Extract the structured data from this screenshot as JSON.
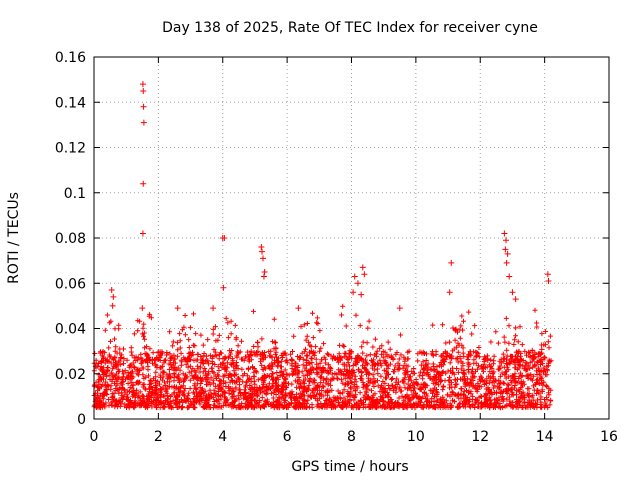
{
  "chart_data": {
    "type": "scatter",
    "title": "Day 138 of 2025, Rate Of TEC Index for receiver cyne",
    "xlabel": "GPS time / hours",
    "ylabel": "ROTI / TECUs",
    "xlim": [
      0,
      16
    ],
    "ylim": [
      0,
      0.16
    ],
    "x_ticks": [
      0,
      2,
      4,
      6,
      8,
      10,
      12,
      14,
      16
    ],
    "y_ticks": [
      0,
      0.02,
      0.04,
      0.06,
      0.08,
      0.1,
      0.12,
      0.14,
      0.16
    ],
    "x_tick_labels": [
      "0",
      "2",
      "4",
      "6",
      "8",
      "10",
      "12",
      "14",
      "16"
    ],
    "y_tick_labels": [
      "0",
      "0.02",
      "0.04",
      "0.06",
      "0.08",
      "0.1",
      "0.12",
      "0.14",
      "0.16"
    ],
    "grid": true,
    "marker": "+",
    "color": "#ff0000",
    "data_range_hours": [
      0,
      14.2
    ],
    "typical_range": [
      0.005,
      0.03
    ],
    "points": [
      [
        1.52,
        0.148
      ],
      [
        1.53,
        0.145
      ],
      [
        1.54,
        0.138
      ],
      [
        1.55,
        0.131
      ],
      [
        1.53,
        0.104
      ],
      [
        1.52,
        0.082
      ],
      [
        4.0,
        0.08
      ],
      [
        4.05,
        0.08
      ],
      [
        4.02,
        0.058
      ],
      [
        5.2,
        0.076
      ],
      [
        5.22,
        0.074
      ],
      [
        5.25,
        0.071
      ],
      [
        5.3,
        0.065
      ],
      [
        5.28,
        0.063
      ],
      [
        6.35,
        0.049
      ],
      [
        8.1,
        0.063
      ],
      [
        8.2,
        0.06
      ],
      [
        8.35,
        0.067
      ],
      [
        8.4,
        0.064
      ],
      [
        8.05,
        0.056
      ],
      [
        8.3,
        0.055
      ],
      [
        11.1,
        0.069
      ],
      [
        11.05,
        0.056
      ],
      [
        12.75,
        0.082
      ],
      [
        12.8,
        0.079
      ],
      [
        12.78,
        0.075
      ],
      [
        12.85,
        0.073
      ],
      [
        12.82,
        0.069
      ],
      [
        12.9,
        0.063
      ],
      [
        14.1,
        0.064
      ],
      [
        14.12,
        0.061
      ],
      [
        0.55,
        0.057
      ],
      [
        0.6,
        0.054
      ],
      [
        0.58,
        0.05
      ],
      [
        1.5,
        0.049
      ],
      [
        2.6,
        0.049
      ],
      [
        3.7,
        0.049
      ],
      [
        13.0,
        0.056
      ],
      [
        13.1,
        0.053
      ],
      [
        9.5,
        0.049
      ]
    ]
  }
}
